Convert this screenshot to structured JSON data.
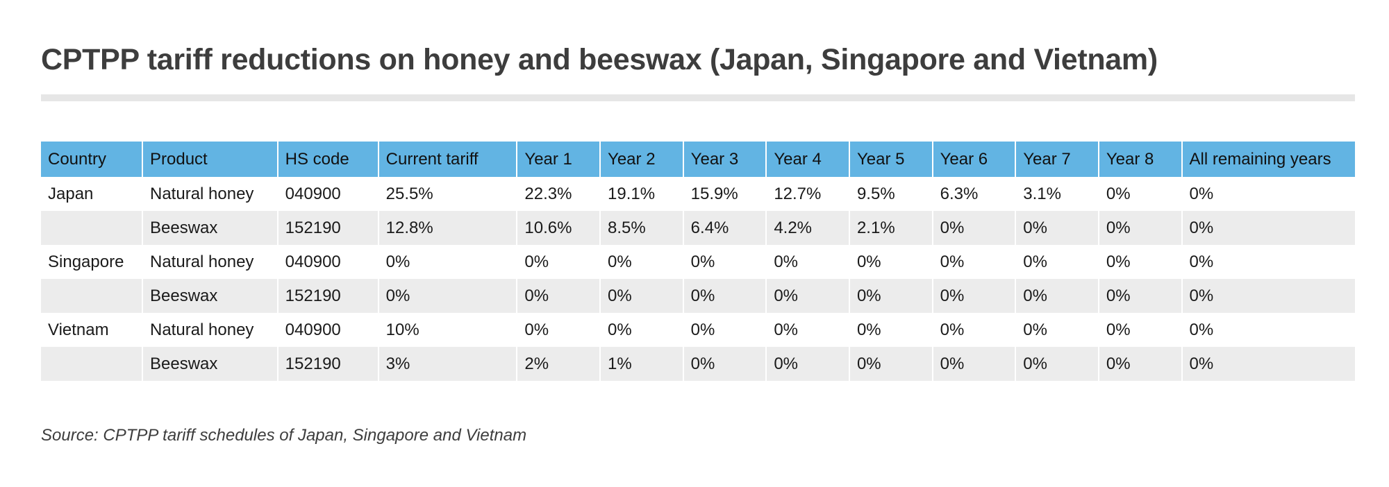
{
  "chart_data": {
    "type": "table",
    "title": "CPTPP tariff reductions on honey and beeswax (Japan, Singapore and Vietnam)",
    "columns": [
      "Country",
      "Product",
      "HS code",
      "Current tariff",
      "Year 1",
      "Year 2",
      "Year 3",
      "Year 4",
      "Year 5",
      "Year 6",
      "Year 7",
      "Year 8",
      "All remaining years"
    ],
    "rows": [
      [
        "Japan",
        "Natural honey",
        "040900",
        "25.5%",
        "22.3%",
        "19.1%",
        "15.9%",
        "12.7%",
        "9.5%",
        "6.3%",
        "3.1%",
        "0%",
        "0%"
      ],
      [
        "",
        "Beeswax",
        "152190",
        "12.8%",
        "10.6%",
        "8.5%",
        "6.4%",
        "4.2%",
        "2.1%",
        "0%",
        "0%",
        "0%",
        "0%"
      ],
      [
        "Singapore",
        "Natural honey",
        "040900",
        "0%",
        "0%",
        "0%",
        "0%",
        "0%",
        "0%",
        "0%",
        "0%",
        "0%",
        "0%"
      ],
      [
        "",
        "Beeswax",
        "152190",
        "0%",
        "0%",
        "0%",
        "0%",
        "0%",
        "0%",
        "0%",
        "0%",
        "0%",
        "0%"
      ],
      [
        "Vietnam",
        "Natural honey",
        "040900",
        "10%",
        "0%",
        "0%",
        "0%",
        "0%",
        "0%",
        "0%",
        "0%",
        "0%",
        "0%"
      ],
      [
        "",
        "Beeswax",
        "152190",
        "3%",
        "2%",
        "1%",
        "0%",
        "0%",
        "0%",
        "0%",
        "0%",
        "0%",
        "0%"
      ]
    ],
    "source": "Source: CPTPP tariff schedules of Japan, Singapore and Vietnam"
  },
  "colors": {
    "header_background": "#62b4e3",
    "stripe_background": "#ececec",
    "title_text": "#3d3d3d",
    "rule": "#e6e6e6"
  }
}
